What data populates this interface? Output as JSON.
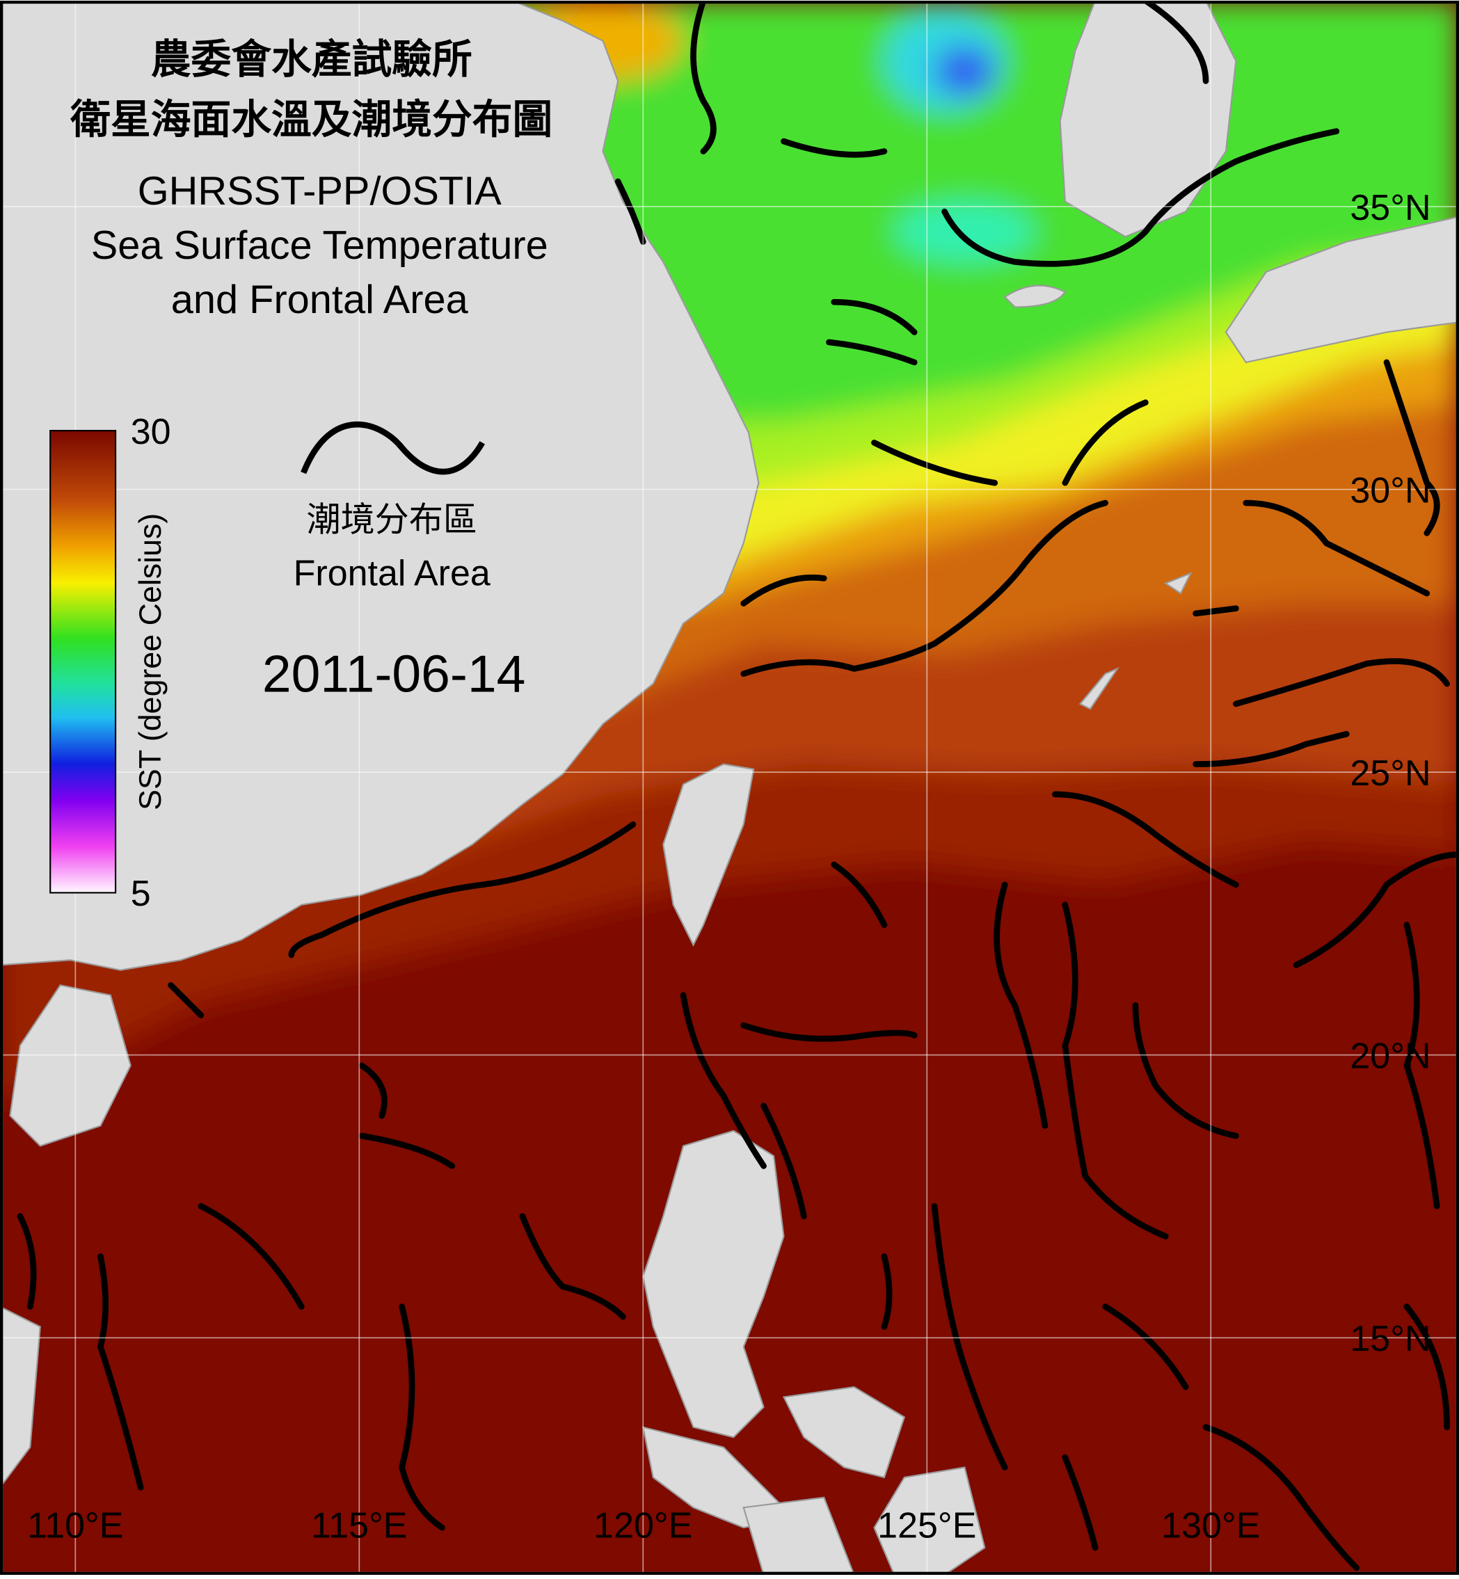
{
  "title": {
    "lines": [
      "農委會水產試驗所",
      "衛星海面水溫及潮境分布圖",
      "GHRSST-PP/OSTIA",
      "Sea Surface Temperature",
      "and Frontal Area"
    ]
  },
  "colorbar": {
    "label": "SST (degree Celsius)",
    "max": 30,
    "min": 5
  },
  "legend": {
    "label_zh": "潮境分布區",
    "label_en": "Frontal Area"
  },
  "date": "2011-06-14",
  "grid": {
    "longitudes": [
      {
        "value": 110,
        "label": "110°E"
      },
      {
        "value": 115,
        "label": "115°E"
      },
      {
        "value": 120,
        "label": "120°E"
      },
      {
        "value": 125,
        "label": "125°E"
      },
      {
        "value": 130,
        "label": "130°E"
      }
    ],
    "latitudes": [
      {
        "value": 35,
        "label": "35°N"
      },
      {
        "value": 30,
        "label": "30°N"
      },
      {
        "value": 25,
        "label": "25°N"
      },
      {
        "value": 20,
        "label": "20°N"
      },
      {
        "value": 15,
        "label": "15°N"
      }
    ]
  }
}
